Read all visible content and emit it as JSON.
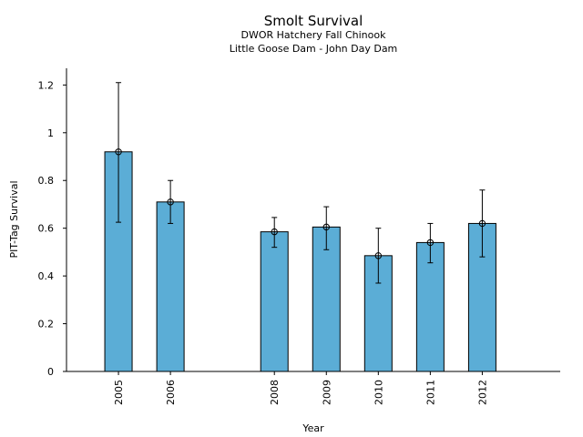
{
  "chart_data": {
    "type": "bar",
    "title": "Smolt Survival",
    "subtitle_lines": [
      "DWOR Hatchery Fall Chinook",
      "Little Goose Dam - John Day Dam"
    ],
    "xlabel": "Year",
    "ylabel": "PIT-Tag Survival",
    "categories": [
      "2005",
      "2006",
      "2008",
      "2009",
      "2010",
      "2011",
      "2012"
    ],
    "x": [
      2005,
      2006,
      2008,
      2009,
      2010,
      2011,
      2012
    ],
    "values": [
      0.92,
      0.71,
      0.585,
      0.605,
      0.485,
      0.54,
      0.62
    ],
    "error_low": [
      0.625,
      0.62,
      0.52,
      0.51,
      0.37,
      0.455,
      0.48
    ],
    "error_high": [
      1.21,
      0.8,
      0.645,
      0.69,
      0.6,
      0.62,
      0.76
    ],
    "ylim": [
      0,
      1.27
    ],
    "yticks": [
      0,
      0.2,
      0.4,
      0.6,
      0.8,
      1,
      1.2
    ],
    "ytick_labels": [
      "0",
      "0.2",
      "0.4",
      "0.6",
      "0.8",
      "1",
      "1.2"
    ],
    "xlim": [
      2004,
      2013.5
    ],
    "grid": false,
    "bar_color": "#5BADD6",
    "edge_color": "#000000"
  }
}
